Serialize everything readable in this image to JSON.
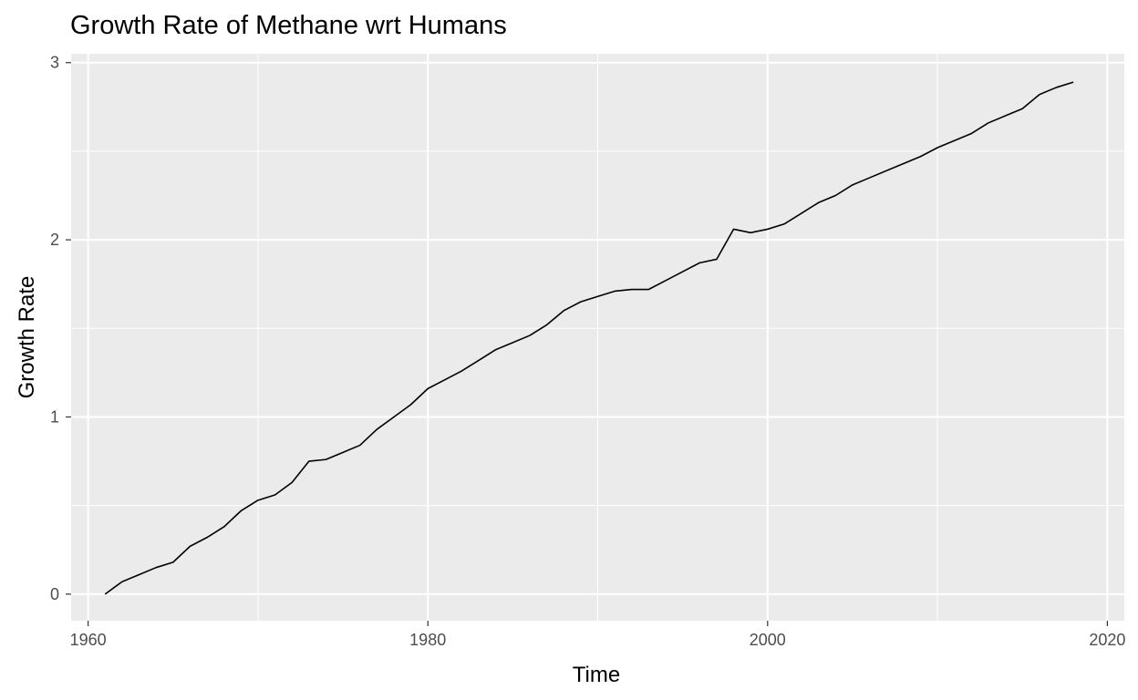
{
  "chart_data": {
    "type": "line",
    "title": "Growth Rate of Methane wrt Humans",
    "xlabel": "Time",
    "ylabel": "Growth Rate",
    "xlim": [
      1959,
      2021
    ],
    "ylim": [
      -0.15,
      3.05
    ],
    "x_ticks": [
      1960,
      1980,
      2000,
      2020
    ],
    "y_ticks": [
      0,
      1,
      2,
      3
    ],
    "x_minor": [
      1970,
      1990,
      2010
    ],
    "y_minor": [
      0.5,
      1.5,
      2.5
    ],
    "grid": true,
    "legend": "none",
    "colors": {
      "panel": "#ebebeb",
      "grid": "#ffffff",
      "line": "#000000",
      "tick": "#333333",
      "tick_text": "#4d4d4d"
    },
    "series": [
      {
        "x": [
          1961,
          1962,
          1963,
          1964,
          1965,
          1966,
          1967,
          1968,
          1969,
          1970,
          1971,
          1972,
          1973,
          1974,
          1975,
          1976,
          1977,
          1978,
          1979,
          1980,
          1981,
          1982,
          1983,
          1984,
          1985,
          1986,
          1987,
          1988,
          1989,
          1990,
          1991,
          1992,
          1993,
          1994,
          1995,
          1996,
          1997,
          1998,
          1999,
          2000,
          2001,
          2002,
          2003,
          2004,
          2005,
          2006,
          2007,
          2008,
          2009,
          2010,
          2011,
          2012,
          2013,
          2014,
          2015,
          2016,
          2017,
          2018
        ],
        "values": [
          0.0,
          0.07,
          0.11,
          0.15,
          0.18,
          0.27,
          0.32,
          0.38,
          0.47,
          0.53,
          0.56,
          0.63,
          0.75,
          0.76,
          0.8,
          0.84,
          0.93,
          1.0,
          1.07,
          1.16,
          1.21,
          1.26,
          1.32,
          1.38,
          1.42,
          1.46,
          1.52,
          1.6,
          1.65,
          1.68,
          1.71,
          1.72,
          1.72,
          1.77,
          1.82,
          1.87,
          1.89,
          2.06,
          2.04,
          2.06,
          2.09,
          2.15,
          2.21,
          2.25,
          2.31,
          2.35,
          2.39,
          2.43,
          2.47,
          2.52,
          2.56,
          2.6,
          2.66,
          2.7,
          2.74,
          2.82,
          2.86,
          2.89
        ]
      }
    ]
  }
}
